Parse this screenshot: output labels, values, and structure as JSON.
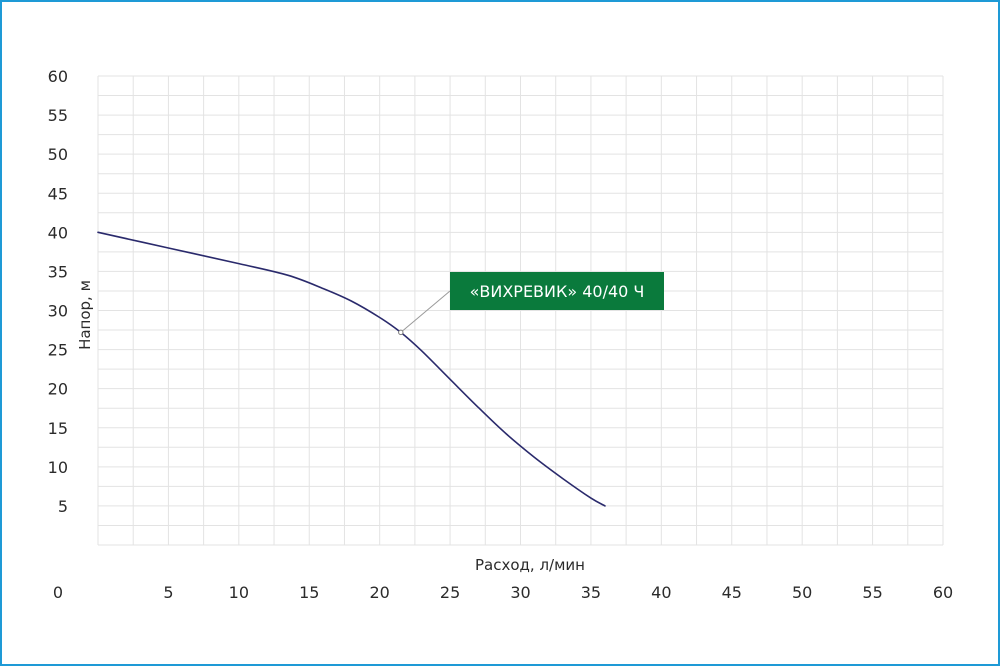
{
  "chart_data": {
    "type": "line",
    "title": "",
    "xlabel": "Расход, л/мин",
    "ylabel": "Напор, м",
    "xlim": [
      0,
      60
    ],
    "ylim": [
      0,
      60
    ],
    "x_ticks": [
      "0",
      "5",
      "10",
      "15",
      "20",
      "25",
      "30",
      "35",
      "40",
      "45",
      "50",
      "55",
      "60"
    ],
    "y_ticks": [
      "5",
      "10",
      "15",
      "20",
      "25",
      "30",
      "35",
      "40",
      "45",
      "50",
      "55",
      "60"
    ],
    "grid": true,
    "series": [
      {
        "name": "«ВИХРЕВИК» 40/40 Ч",
        "x": [
          0,
          5,
          10,
          13.5,
          16,
          18,
          20,
          21.5,
          23,
          25,
          27,
          29,
          31,
          33,
          35,
          36
        ],
        "y": [
          40,
          38,
          36,
          34.5,
          32.8,
          31.2,
          29.1,
          27.2,
          24.8,
          21.2,
          17.6,
          14.2,
          11.2,
          8.5,
          6,
          5
        ]
      }
    ],
    "annotation": {
      "text": "«ВИХРЕВИК» 40/40 Ч",
      "point": [
        21.5,
        27.2
      ],
      "box_color": "#0a7a3c",
      "text_color": "#ffffff"
    },
    "colors": {
      "line": "#2a2a6c",
      "grid": "#e3e3e3",
      "frame": "#1e9ad6"
    }
  }
}
